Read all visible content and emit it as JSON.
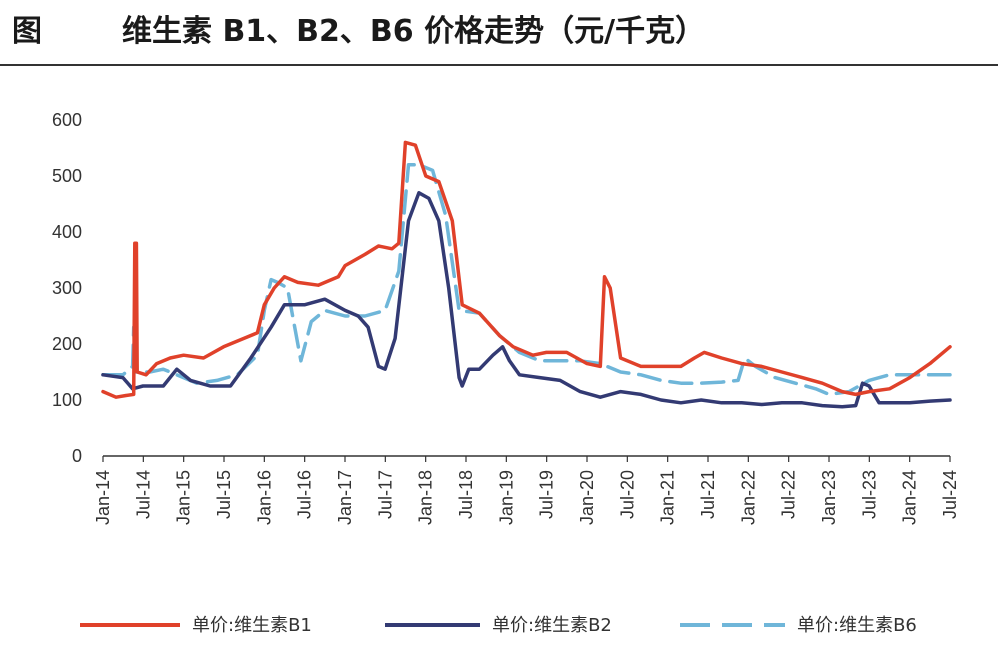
{
  "header": {
    "figure_label": "图",
    "title": "维生素 B1、B2、B6 价格走势（元/千克）"
  },
  "colors": {
    "b1": "#e0412a",
    "b2": "#333a73",
    "b6": "#6fb6d9",
    "axis": "#333333"
  },
  "chart_data": {
    "type": "line",
    "title": "维生素 B1、B2、B6 价格走势（元/千克）",
    "x_tick_labels": [
      "Jan-14",
      "Jul-14",
      "Jan-15",
      "Jul-15",
      "Jan-16",
      "Jul-16",
      "Jan-17",
      "Jul-17",
      "Jan-18",
      "Jul-18",
      "Jan-19",
      "Jul-19",
      "Jan-20",
      "Jul-20",
      "Jan-21",
      "Jul-21",
      "Jan-22",
      "Jul-22",
      "Jan-23",
      "Jul-23",
      "Jan-24",
      "Jul-24"
    ],
    "y_ticks": [
      0,
      100,
      200,
      300,
      400,
      500,
      600
    ],
    "ylim": [
      0,
      600
    ],
    "xlim": [
      "2014-01",
      "2024-07"
    ],
    "grid": false,
    "legend_position": "bottom",
    "series": [
      {
        "name": "单价:维生素B1",
        "key": "b1",
        "style": "solid",
        "points": [
          [
            "2014-01-01",
            115
          ],
          [
            "2014-03-01",
            105
          ],
          [
            "2014-04-15",
            108
          ],
          [
            "2014-05-20",
            110
          ],
          [
            "2014-05-25",
            380
          ],
          [
            "2014-06-01",
            380
          ],
          [
            "2014-06-05",
            150
          ],
          [
            "2014-07-15",
            145
          ],
          [
            "2014-09-01",
            165
          ],
          [
            "2014-11-01",
            175
          ],
          [
            "2015-01-01",
            180
          ],
          [
            "2015-04-01",
            175
          ],
          [
            "2015-07-01",
            195
          ],
          [
            "2015-10-01",
            210
          ],
          [
            "2015-12-01",
            220
          ],
          [
            "2016-01-01",
            270
          ],
          [
            "2016-02-15",
            300
          ],
          [
            "2016-04-01",
            320
          ],
          [
            "2016-06-01",
            310
          ],
          [
            "2016-09-01",
            305
          ],
          [
            "2016-12-01",
            320
          ],
          [
            "2017-01-01",
            340
          ],
          [
            "2017-04-01",
            360
          ],
          [
            "2017-06-01",
            375
          ],
          [
            "2017-08-01",
            370
          ],
          [
            "2017-09-01",
            380
          ],
          [
            "2017-10-01",
            560
          ],
          [
            "2017-11-15",
            555
          ],
          [
            "2018-01-01",
            500
          ],
          [
            "2018-03-01",
            490
          ],
          [
            "2018-05-01",
            420
          ],
          [
            "2018-06-15",
            270
          ],
          [
            "2018-09-01",
            255
          ],
          [
            "2018-12-01",
            215
          ],
          [
            "2019-02-01",
            195
          ],
          [
            "2019-05-01",
            180
          ],
          [
            "2019-07-01",
            185
          ],
          [
            "2019-10-01",
            185
          ],
          [
            "2020-01-01",
            165
          ],
          [
            "2020-03-01",
            160
          ],
          [
            "2020-03-20",
            320
          ],
          [
            "2020-04-15",
            300
          ],
          [
            "2020-06-01",
            175
          ],
          [
            "2020-09-01",
            160
          ],
          [
            "2020-12-01",
            160
          ],
          [
            "2021-03-01",
            160
          ],
          [
            "2021-05-01",
            175
          ],
          [
            "2021-06-15",
            185
          ],
          [
            "2021-09-01",
            175
          ],
          [
            "2021-12-01",
            165
          ],
          [
            "2022-03-01",
            160
          ],
          [
            "2022-06-01",
            150
          ],
          [
            "2022-09-01",
            140
          ],
          [
            "2022-12-01",
            130
          ],
          [
            "2023-03-01",
            115
          ],
          [
            "2023-05-01",
            110
          ],
          [
            "2023-07-01",
            115
          ],
          [
            "2023-10-01",
            120
          ],
          [
            "2024-01-01",
            140
          ],
          [
            "2024-04-01",
            165
          ],
          [
            "2024-07-01",
            195
          ]
        ]
      },
      {
        "name": "单价:维生素B2",
        "key": "b2",
        "style": "solid",
        "points": [
          [
            "2014-01-01",
            145
          ],
          [
            "2014-04-01",
            140
          ],
          [
            "2014-05-15",
            120
          ],
          [
            "2014-07-01",
            125
          ],
          [
            "2014-10-01",
            125
          ],
          [
            "2014-12-01",
            155
          ],
          [
            "2015-02-01",
            135
          ],
          [
            "2015-05-01",
            125
          ],
          [
            "2015-08-01",
            125
          ],
          [
            "2015-11-01",
            175
          ],
          [
            "2016-02-01",
            230
          ],
          [
            "2016-04-01",
            270
          ],
          [
            "2016-07-01",
            270
          ],
          [
            "2016-10-01",
            280
          ],
          [
            "2017-01-01",
            260
          ],
          [
            "2017-03-01",
            250
          ],
          [
            "2017-04-15",
            230
          ],
          [
            "2017-06-01",
            160
          ],
          [
            "2017-07-01",
            155
          ],
          [
            "2017-08-15",
            210
          ],
          [
            "2017-10-15",
            420
          ],
          [
            "2017-12-01",
            470
          ],
          [
            "2018-01-15",
            460
          ],
          [
            "2018-03-01",
            420
          ],
          [
            "2018-04-15",
            300
          ],
          [
            "2018-06-01",
            140
          ],
          [
            "2018-06-15",
            125
          ],
          [
            "2018-07-15",
            155
          ],
          [
            "2018-09-01",
            155
          ],
          [
            "2018-11-01",
            180
          ],
          [
            "2018-12-15",
            195
          ],
          [
            "2019-01-15",
            170
          ],
          [
            "2019-03-01",
            145
          ],
          [
            "2019-06-01",
            140
          ],
          [
            "2019-09-01",
            135
          ],
          [
            "2019-12-01",
            115
          ],
          [
            "2020-03-01",
            105
          ],
          [
            "2020-06-01",
            115
          ],
          [
            "2020-09-01",
            110
          ],
          [
            "2020-12-01",
            100
          ],
          [
            "2021-03-01",
            95
          ],
          [
            "2021-06-01",
            100
          ],
          [
            "2021-09-01",
            95
          ],
          [
            "2021-12-01",
            95
          ],
          [
            "2022-03-01",
            92
          ],
          [
            "2022-06-01",
            95
          ],
          [
            "2022-09-01",
            95
          ],
          [
            "2022-12-01",
            90
          ],
          [
            "2023-03-01",
            88
          ],
          [
            "2023-05-01",
            90
          ],
          [
            "2023-06-01",
            130
          ],
          [
            "2023-07-01",
            125
          ],
          [
            "2023-08-15",
            95
          ],
          [
            "2023-10-01",
            95
          ],
          [
            "2024-01-01",
            95
          ],
          [
            "2024-04-01",
            98
          ],
          [
            "2024-07-01",
            100
          ]
        ]
      },
      {
        "name": "单价:维生素B6",
        "key": "b6",
        "style": "dashed",
        "points": [
          [
            "2014-01-01",
            145
          ],
          [
            "2014-04-01",
            145
          ],
          [
            "2014-05-15",
            160
          ],
          [
            "2014-05-20",
            230
          ],
          [
            "2014-05-28",
            150
          ],
          [
            "2014-08-01",
            150
          ],
          [
            "2014-10-01",
            155
          ],
          [
            "2014-12-01",
            145
          ],
          [
            "2015-03-01",
            130
          ],
          [
            "2015-06-01",
            135
          ],
          [
            "2015-09-01",
            145
          ],
          [
            "2015-12-01",
            180
          ],
          [
            "2016-01-01",
            260
          ],
          [
            "2016-02-01",
            315
          ],
          [
            "2016-03-01",
            310
          ],
          [
            "2016-04-15",
            300
          ],
          [
            "2016-06-15",
            170
          ],
          [
            "2016-08-01",
            240
          ],
          [
            "2016-10-01",
            260
          ],
          [
            "2017-01-01",
            250
          ],
          [
            "2017-04-01",
            250
          ],
          [
            "2017-07-01",
            260
          ],
          [
            "2017-09-01",
            330
          ],
          [
            "2017-10-15",
            520
          ],
          [
            "2017-12-01",
            520
          ],
          [
            "2018-02-01",
            510
          ],
          [
            "2018-04-01",
            430
          ],
          [
            "2018-06-01",
            260
          ],
          [
            "2018-09-01",
            255
          ],
          [
            "2018-12-01",
            215
          ],
          [
            "2019-03-01",
            185
          ],
          [
            "2019-06-01",
            170
          ],
          [
            "2019-09-01",
            170
          ],
          [
            "2019-12-01",
            170
          ],
          [
            "2020-03-01",
            165
          ],
          [
            "2020-06-01",
            150
          ],
          [
            "2020-09-01",
            145
          ],
          [
            "2020-12-01",
            135
          ],
          [
            "2021-03-01",
            130
          ],
          [
            "2021-06-01",
            130
          ],
          [
            "2021-09-01",
            132
          ],
          [
            "2021-11-15",
            135
          ],
          [
            "2021-12-15",
            175
          ],
          [
            "2022-02-01",
            160
          ],
          [
            "2022-05-01",
            140
          ],
          [
            "2022-08-01",
            130
          ],
          [
            "2022-11-01",
            120
          ],
          [
            "2023-01-01",
            110
          ],
          [
            "2023-04-01",
            115
          ],
          [
            "2023-07-01",
            135
          ],
          [
            "2023-10-01",
            145
          ],
          [
            "2024-01-01",
            145
          ],
          [
            "2024-04-01",
            145
          ],
          [
            "2024-07-01",
            145
          ]
        ]
      }
    ]
  }
}
